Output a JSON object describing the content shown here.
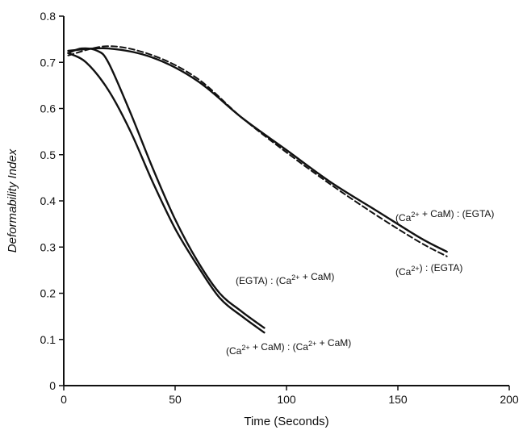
{
  "chart_data": {
    "type": "line",
    "xlabel": "Time (Seconds)",
    "ylabel": "Deformability Index",
    "xlim": [
      0,
      200
    ],
    "ylim": [
      0,
      0.8
    ],
    "x_ticks": [
      "0",
      "50",
      "100",
      "150",
      "200"
    ],
    "y_ticks": [
      "0",
      "0.1",
      "0.2",
      "0.3",
      "0.4",
      "0.5",
      "0.6",
      "0.7",
      "0.8"
    ],
    "grid": false,
    "series": [
      {
        "name": "(Ca2+ + CaM) : (Ca2+ + CaM)",
        "style": "solid",
        "x": [
          2,
          10,
          20,
          30,
          40,
          50,
          60,
          70,
          80,
          90
        ],
        "y": [
          0.72,
          0.7,
          0.64,
          0.55,
          0.44,
          0.34,
          0.26,
          0.19,
          0.15,
          0.115
        ]
      },
      {
        "name": "(EGTA) : (Ca2+ + CaM)",
        "style": "solid",
        "x": [
          2,
          8,
          15,
          20,
          30,
          40,
          50,
          60,
          70,
          80,
          90
        ],
        "y": [
          0.72,
          0.73,
          0.725,
          0.7,
          0.59,
          0.47,
          0.36,
          0.27,
          0.2,
          0.16,
          0.125
        ]
      },
      {
        "name": "(Ca2+ + CaM) : (EGTA)",
        "style": "solid",
        "x": [
          2,
          20,
          40,
          60,
          80,
          100,
          120,
          140,
          160,
          172
        ],
        "y": [
          0.725,
          0.73,
          0.71,
          0.66,
          0.58,
          0.51,
          0.44,
          0.38,
          0.32,
          0.29
        ]
      },
      {
        "name": "(Ca2+) : (EGTA)",
        "style": "dashed",
        "x": [
          2,
          20,
          40,
          60,
          80,
          100,
          120,
          140,
          160,
          172
        ],
        "y": [
          0.715,
          0.735,
          0.715,
          0.665,
          0.58,
          0.505,
          0.435,
          0.37,
          0.31,
          0.28
        ]
      }
    ],
    "annotations": [
      {
        "series": 1,
        "parts": [
          "(EGTA) : (Ca",
          "2+",
          " + CaM)"
        ]
      },
      {
        "series": 0,
        "parts": [
          "(Ca",
          "2+",
          " + CaM) : (Ca",
          "2+",
          " + CaM)"
        ]
      },
      {
        "series": 2,
        "parts": [
          "(Ca",
          "2+",
          " + CaM) : (EGTA)"
        ]
      },
      {
        "series": 3,
        "parts": [
          "(Ca",
          "2+",
          ") : (EGTA)"
        ]
      }
    ]
  }
}
